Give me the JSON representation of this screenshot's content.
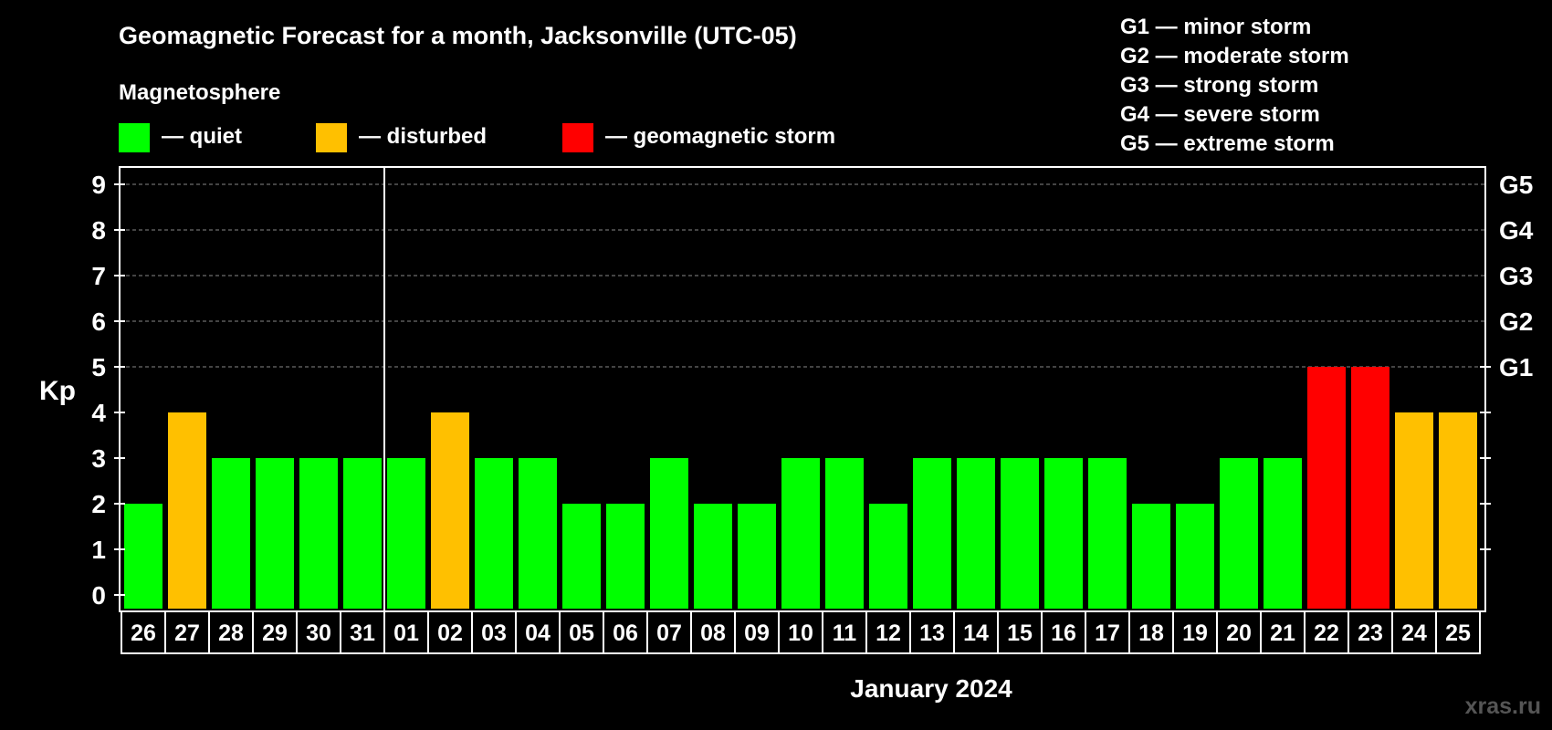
{
  "chart_data": {
    "type": "bar",
    "title": "Geomagnetic Forecast for a month, Jacksonville (UTC-05)",
    "ylabel": "Kp",
    "xlabel": "January 2024",
    "ylim": [
      0,
      9
    ],
    "yticks": [
      "0",
      "1",
      "2",
      "3",
      "4",
      "5",
      "6",
      "7",
      "8",
      "9"
    ],
    "right_axis_labels": [
      {
        "kp": 5,
        "label": "G1"
      },
      {
        "kp": 6,
        "label": "G2"
      },
      {
        "kp": 7,
        "label": "G3"
      },
      {
        "kp": 8,
        "label": "G4"
      },
      {
        "kp": 9,
        "label": "G5"
      }
    ],
    "grid": true,
    "month_separator_after": "31",
    "categories": [
      "26",
      "27",
      "28",
      "29",
      "30",
      "31",
      "01",
      "02",
      "03",
      "04",
      "05",
      "06",
      "07",
      "08",
      "09",
      "10",
      "11",
      "12",
      "13",
      "14",
      "15",
      "16",
      "17",
      "18",
      "19",
      "20",
      "21",
      "22",
      "23",
      "24",
      "25"
    ],
    "values": [
      2,
      4,
      3,
      3,
      3,
      3,
      3,
      4,
      3,
      3,
      2,
      2,
      3,
      2,
      2,
      3,
      3,
      2,
      3,
      3,
      3,
      3,
      3,
      2,
      2,
      3,
      3,
      5,
      5,
      4,
      4
    ],
    "level_colors": {
      "quiet": "#00ff00",
      "disturbed": "#ffc000",
      "storm": "#ff0000"
    }
  },
  "legend": {
    "heading": "Magnetosphere",
    "items": [
      {
        "label": "— quiet",
        "color": "#00ff00"
      },
      {
        "label": "— disturbed",
        "color": "#ffc000"
      },
      {
        "label": "— geomagnetic storm",
        "color": "#ff0000"
      }
    ]
  },
  "storm_scale": [
    "G1 — minor storm",
    "G2 — moderate storm",
    "G3 — strong storm",
    "G4 — severe storm",
    "G5 — extreme storm"
  ],
  "watermark": "xras.ru"
}
